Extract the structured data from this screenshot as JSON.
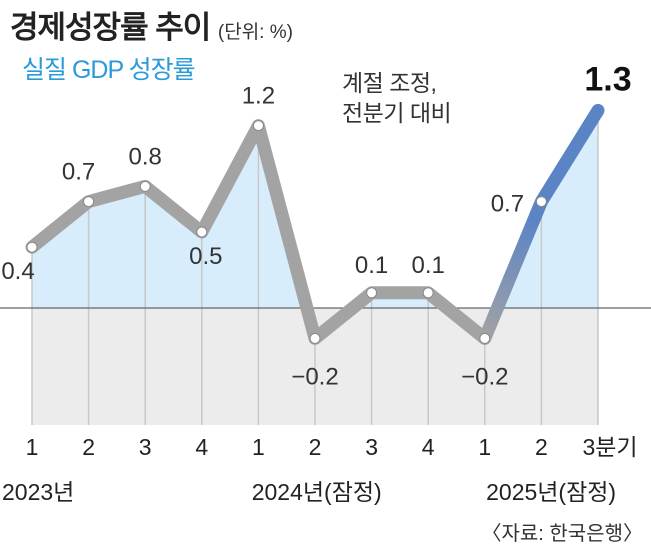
{
  "chart_data": {
    "type": "line",
    "title": "경제성장률 추이",
    "unit_label": "(단위: %)",
    "subtitle": "실질 GDP 성장률",
    "annotation": [
      "계절 조정,",
      "전분기 대비"
    ],
    "categories": [
      "1",
      "2",
      "3",
      "4",
      "1",
      "2",
      "3",
      "4",
      "1",
      "2",
      "3분기"
    ],
    "year_labels": [
      {
        "label": "2023년",
        "start_index": 0
      },
      {
        "label": "2024년(잠정)",
        "start_index": 4
      },
      {
        "label": "2025년(잠정)",
        "start_index": 8
      }
    ],
    "values": [
      0.4,
      0.7,
      0.8,
      0.5,
      1.2,
      -0.2,
      0.1,
      0.1,
      -0.2,
      0.7,
      1.3
    ],
    "value_labels": [
      "0.4",
      "0.7",
      "0.8",
      "0.5",
      "1.2",
      "−0.2",
      "0.1",
      "0.1",
      "−0.2",
      "0.7",
      "1.3"
    ],
    "ylim": [
      -0.7,
      1.3
    ],
    "source": "〈자료: 한국은행〉",
    "colors": {
      "line": "#a3a3a3",
      "highlight": "#5b84c4",
      "pos_fill": "#d7edfb",
      "neg_fill": "#ececec",
      "subtitle": "#2a9ad8"
    }
  }
}
